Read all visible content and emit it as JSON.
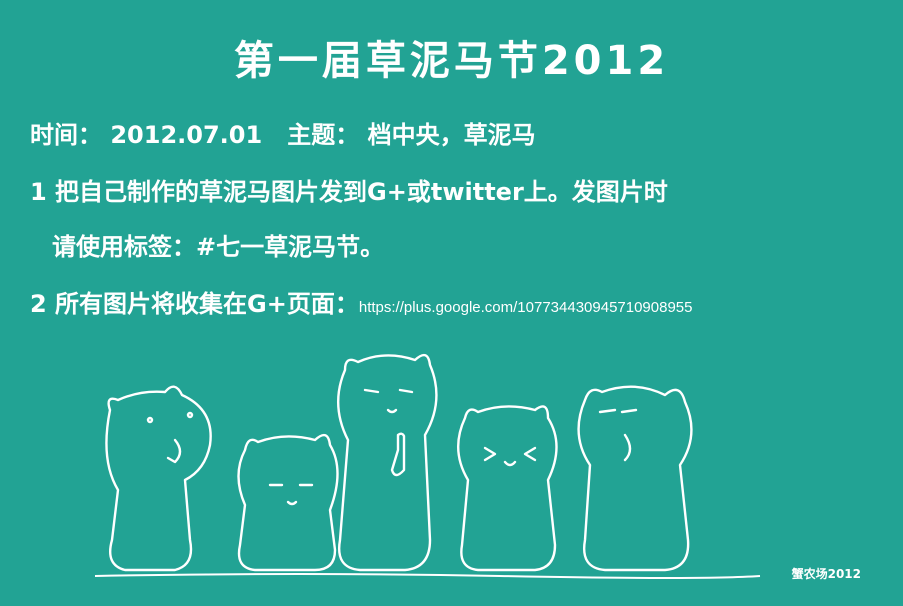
{
  "title": "第一届草泥马节2012",
  "line1": {
    "label": "时间：",
    "date": "2012.07.01",
    "theme_label": "主题：",
    "theme": "档中央，草泥马"
  },
  "line2": "1 把自己制作的草泥马图片发到G+或twitter上。发图片时",
  "line3": "请使用标签：#七一草泥马节。",
  "line4": {
    "text": "2 所有图片将收集在G+页面：",
    "url": "https://plus.google.com/107734430945710908955"
  },
  "signature": "蟹农场2012",
  "colors": {
    "background": "#22a394",
    "ink": "#ffffff"
  }
}
